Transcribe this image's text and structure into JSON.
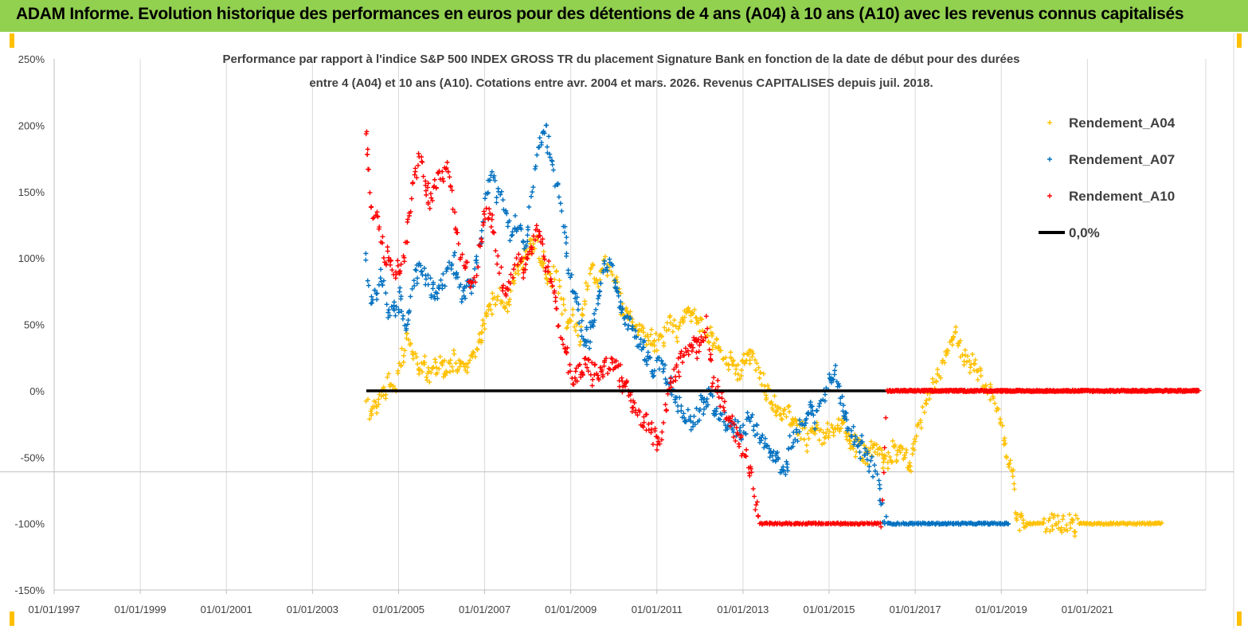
{
  "header": {
    "title": "ADAM Informe. Evolution historique des performances en euros pour des détentions de 4 ans (A04) à 10 ans (A10) avec les revenus connus capitalisés"
  },
  "chart_data": {
    "type": "scatter",
    "title_lines": [
      "Performance par rapport à l'indice S&P 500 INDEX GROSS TR  du placement Signature Bank en fonction de la date de début pour des durées",
      "entre 4 (A04) et 10 ans (A10). Cotations entre avr. 2004 et mars. 2026. Revenus CAPITALISES depuis juil. 2018."
    ],
    "xlabel": "",
    "ylabel": "",
    "x_range": [
      1997.0,
      2023.75
    ],
    "y_range": [
      -150,
      250
    ],
    "y_ticks": [
      250,
      200,
      150,
      100,
      50,
      0,
      -50,
      -100,
      -150
    ],
    "y_tick_labels": [
      "250%",
      "200%",
      "150%",
      "100%",
      "50%",
      "0%",
      "-50%",
      "-100%",
      "-150%"
    ],
    "x_ticks": [
      1997,
      1999,
      2001,
      2003,
      2005,
      2007,
      2009,
      2011,
      2013,
      2015,
      2017,
      2019,
      2021
    ],
    "x_tick_labels": [
      "01/01/1997",
      "01/01/1999",
      "01/01/2001",
      "01/01/2003",
      "01/01/2005",
      "01/01/2007",
      "01/01/2009",
      "01/01/2011",
      "01/01/2013",
      "01/01/2015",
      "01/01/2017",
      "01/01/2019",
      "01/01/2021"
    ],
    "grid": "vertical",
    "legend_position": "top-right",
    "series": [
      {
        "name": "Rendement_A04",
        "color": "#ffc000",
        "marker": "+",
        "points": [
          [
            2004.25,
            -10
          ],
          [
            2004.35,
            -20
          ],
          [
            2004.5,
            -12
          ],
          [
            2004.65,
            0
          ],
          [
            2004.8,
            10
          ],
          [
            2004.95,
            -3
          ],
          [
            2005.05,
            25
          ],
          [
            2005.2,
            38
          ],
          [
            2005.35,
            30
          ],
          [
            2005.5,
            18
          ],
          [
            2005.7,
            12
          ],
          [
            2005.9,
            20
          ],
          [
            2006.1,
            16
          ],
          [
            2006.3,
            22
          ],
          [
            2006.5,
            14
          ],
          [
            2006.7,
            25
          ],
          [
            2006.85,
            35
          ],
          [
            2007.0,
            55
          ],
          [
            2007.2,
            65
          ],
          [
            2007.35,
            72
          ],
          [
            2007.5,
            60
          ],
          [
            2007.65,
            85
          ],
          [
            2007.8,
            95
          ],
          [
            2008.0,
            105
          ],
          [
            2008.2,
            112
          ],
          [
            2008.35,
            95
          ],
          [
            2008.5,
            82
          ],
          [
            2008.65,
            90
          ],
          [
            2008.8,
            62
          ],
          [
            2008.95,
            45
          ],
          [
            2009.05,
            58
          ],
          [
            2009.2,
            40
          ],
          [
            2009.35,
            78
          ],
          [
            2009.5,
            90
          ],
          [
            2009.65,
            85
          ],
          [
            2009.8,
            95
          ],
          [
            2009.9,
            100
          ],
          [
            2010.0,
            88
          ],
          [
            2010.15,
            70
          ],
          [
            2010.3,
            60
          ],
          [
            2010.5,
            52
          ],
          [
            2010.7,
            42
          ],
          [
            2010.9,
            40
          ],
          [
            2011.1,
            35
          ],
          [
            2011.3,
            50
          ],
          [
            2011.5,
            45
          ],
          [
            2011.7,
            60
          ],
          [
            2011.9,
            56
          ],
          [
            2012.1,
            45
          ],
          [
            2012.3,
            40
          ],
          [
            2012.5,
            25
          ],
          [
            2012.7,
            20
          ],
          [
            2012.9,
            12
          ],
          [
            2013.1,
            28
          ],
          [
            2013.3,
            20
          ],
          [
            2013.5,
            5
          ],
          [
            2013.7,
            -8
          ],
          [
            2013.9,
            -15
          ],
          [
            2014.1,
            -20
          ],
          [
            2014.3,
            -28
          ],
          [
            2014.5,
            -35
          ],
          [
            2014.7,
            -32
          ],
          [
            2014.9,
            -35
          ],
          [
            2015.1,
            -30
          ],
          [
            2015.3,
            -22
          ],
          [
            2015.5,
            -38
          ],
          [
            2015.7,
            -42
          ],
          [
            2015.9,
            -50
          ],
          [
            2016.1,
            -45
          ],
          [
            2016.3,
            -55
          ],
          [
            2016.5,
            -45
          ],
          [
            2016.7,
            -48
          ],
          [
            2016.9,
            -60
          ],
          [
            2017.0,
            -38
          ],
          [
            2017.15,
            -22
          ],
          [
            2017.3,
            0
          ],
          [
            2017.5,
            5
          ],
          [
            2017.65,
            18
          ],
          [
            2017.8,
            32
          ],
          [
            2017.95,
            40
          ],
          [
            2018.1,
            30
          ],
          [
            2018.25,
            25
          ],
          [
            2018.45,
            15
          ],
          [
            2018.65,
            5
          ],
          [
            2018.85,
            -10
          ],
          [
            2019.0,
            -25
          ],
          [
            2019.1,
            -40
          ],
          [
            2019.2,
            -55
          ],
          [
            2019.27,
            -63
          ],
          [
            2019.35,
            -98
          ],
          [
            2019.6,
            -100
          ],
          [
            2020.0,
            -100
          ],
          [
            2020.4,
            -99
          ],
          [
            2020.8,
            -100
          ],
          [
            2021.2,
            -100
          ],
          [
            2021.6,
            -100
          ],
          [
            2022.0,
            -100
          ],
          [
            2022.4,
            -100
          ],
          [
            2022.75,
            -100
          ]
        ]
      },
      {
        "name": "Rendement_A07",
        "color": "#0070c0",
        "marker": "+",
        "points": [
          [
            2004.25,
            100
          ],
          [
            2004.35,
            65
          ],
          [
            2004.5,
            75
          ],
          [
            2004.6,
            90
          ],
          [
            2004.75,
            55
          ],
          [
            2004.9,
            60
          ],
          [
            2005.05,
            70
          ],
          [
            2005.2,
            45
          ],
          [
            2005.35,
            85
          ],
          [
            2005.5,
            95
          ],
          [
            2005.7,
            80
          ],
          [
            2005.9,
            70
          ],
          [
            2006.1,
            88
          ],
          [
            2006.3,
            95
          ],
          [
            2006.5,
            70
          ],
          [
            2006.7,
            80
          ],
          [
            2006.85,
            100
          ],
          [
            2007.0,
            140
          ],
          [
            2007.15,
            160
          ],
          [
            2007.3,
            150
          ],
          [
            2007.45,
            140
          ],
          [
            2007.6,
            120
          ],
          [
            2007.8,
            130
          ],
          [
            2007.95,
            110
          ],
          [
            2008.1,
            150
          ],
          [
            2008.25,
            185
          ],
          [
            2008.4,
            200
          ],
          [
            2008.55,
            175
          ],
          [
            2008.7,
            150
          ],
          [
            2008.85,
            120
          ],
          [
            2008.95,
            95
          ],
          [
            2009.05,
            75
          ],
          [
            2009.2,
            55
          ],
          [
            2009.35,
            40
          ],
          [
            2009.5,
            45
          ],
          [
            2009.65,
            70
          ],
          [
            2009.8,
            95
          ],
          [
            2009.95,
            100
          ],
          [
            2010.1,
            70
          ],
          [
            2010.3,
            55
          ],
          [
            2010.5,
            40
          ],
          [
            2010.7,
            30
          ],
          [
            2010.9,
            15
          ],
          [
            2011.1,
            20
          ],
          [
            2011.3,
            5
          ],
          [
            2011.5,
            -10
          ],
          [
            2011.65,
            -18
          ],
          [
            2011.8,
            -25
          ],
          [
            2012.0,
            -15
          ],
          [
            2012.2,
            -5
          ],
          [
            2012.4,
            -18
          ],
          [
            2012.6,
            -20
          ],
          [
            2012.8,
            -28
          ],
          [
            2013.0,
            -30
          ],
          [
            2013.2,
            -20
          ],
          [
            2013.4,
            -38
          ],
          [
            2013.6,
            -45
          ],
          [
            2013.8,
            -55
          ],
          [
            2013.95,
            -62
          ],
          [
            2014.1,
            -40
          ],
          [
            2014.3,
            -30
          ],
          [
            2014.5,
            -15
          ],
          [
            2014.7,
            -20
          ],
          [
            2014.85,
            -5
          ],
          [
            2015.0,
            10
          ],
          [
            2015.15,
            18
          ],
          [
            2015.3,
            -10
          ],
          [
            2015.5,
            -30
          ],
          [
            2015.7,
            -40
          ],
          [
            2015.9,
            -50
          ],
          [
            2016.05,
            -60
          ],
          [
            2016.15,
            -65
          ],
          [
            2016.2,
            -88
          ],
          [
            2016.35,
            -100
          ],
          [
            2016.8,
            -100
          ],
          [
            2017.3,
            -100
          ],
          [
            2017.8,
            -100
          ],
          [
            2018.3,
            -100
          ],
          [
            2018.8,
            -100
          ],
          [
            2019.2,
            -100
          ]
        ]
      },
      {
        "name": "Rendement_A10",
        "color": "#ff0000",
        "marker": "+",
        "points": [
          [
            2004.25,
            195
          ],
          [
            2004.3,
            165
          ],
          [
            2004.4,
            130
          ],
          [
            2004.5,
            140
          ],
          [
            2004.65,
            105
          ],
          [
            2004.8,
            95
          ],
          [
            2004.95,
            88
          ],
          [
            2005.1,
            100
          ],
          [
            2005.25,
            130
          ],
          [
            2005.4,
            165
          ],
          [
            2005.55,
            175
          ],
          [
            2005.7,
            140
          ],
          [
            2005.85,
            155
          ],
          [
            2006.0,
            165
          ],
          [
            2006.15,
            170
          ],
          [
            2006.3,
            130
          ],
          [
            2006.45,
            100
          ],
          [
            2006.6,
            90
          ],
          [
            2006.75,
            80
          ],
          [
            2006.9,
            110
          ],
          [
            2007.05,
            140
          ],
          [
            2007.2,
            120
          ],
          [
            2007.35,
            90
          ],
          [
            2007.5,
            75
          ],
          [
            2007.65,
            85
          ],
          [
            2007.8,
            100
          ],
          [
            2007.95,
            90
          ],
          [
            2008.1,
            110
          ],
          [
            2008.25,
            120
          ],
          [
            2008.4,
            100
          ],
          [
            2008.55,
            85
          ],
          [
            2008.7,
            50
          ],
          [
            2008.85,
            30
          ],
          [
            2009.0,
            10
          ],
          [
            2009.2,
            15
          ],
          [
            2009.4,
            20
          ],
          [
            2009.6,
            12
          ],
          [
            2009.8,
            18
          ],
          [
            2010.0,
            20
          ],
          [
            2010.2,
            10
          ],
          [
            2010.4,
            -5
          ],
          [
            2010.6,
            -20
          ],
          [
            2010.8,
            -25
          ],
          [
            2011.0,
            -40
          ],
          [
            2011.1,
            -30
          ],
          [
            2011.25,
            -5
          ],
          [
            2011.4,
            15
          ],
          [
            2011.6,
            25
          ],
          [
            2011.8,
            30
          ],
          [
            2012.0,
            35
          ],
          [
            2012.15,
            50
          ],
          [
            2012.3,
            10
          ],
          [
            2012.45,
            -5
          ],
          [
            2012.6,
            -15
          ],
          [
            2012.8,
            -30
          ],
          [
            2013.0,
            -45
          ],
          [
            2013.15,
            -55
          ],
          [
            2013.2,
            -68
          ],
          [
            2013.3,
            -85
          ],
          [
            2013.4,
            -100
          ],
          [
            2013.8,
            -100
          ],
          [
            2014.3,
            -100
          ],
          [
            2014.8,
            -100
          ],
          [
            2015.3,
            -100
          ],
          [
            2015.8,
            -100
          ],
          [
            2016.2,
            -100
          ],
          [
            2016.35,
            0
          ],
          [
            2016.8,
            0
          ],
          [
            2017.3,
            0
          ],
          [
            2017.8,
            0
          ],
          [
            2018.3,
            0
          ],
          [
            2018.8,
            0
          ],
          [
            2019.3,
            0
          ],
          [
            2019.8,
            0
          ],
          [
            2020.3,
            0
          ],
          [
            2020.8,
            0
          ],
          [
            2021.3,
            0
          ],
          [
            2021.8,
            0
          ],
          [
            2022.3,
            0
          ],
          [
            2022.8,
            0
          ],
          [
            2023.3,
            0
          ],
          [
            2023.6,
            0
          ]
        ]
      },
      {
        "name": "0,0%",
        "color": "#000000",
        "type": "line",
        "x": [
          2004.25,
          2023.6
        ],
        "y": [
          0,
          0
        ]
      }
    ]
  }
}
